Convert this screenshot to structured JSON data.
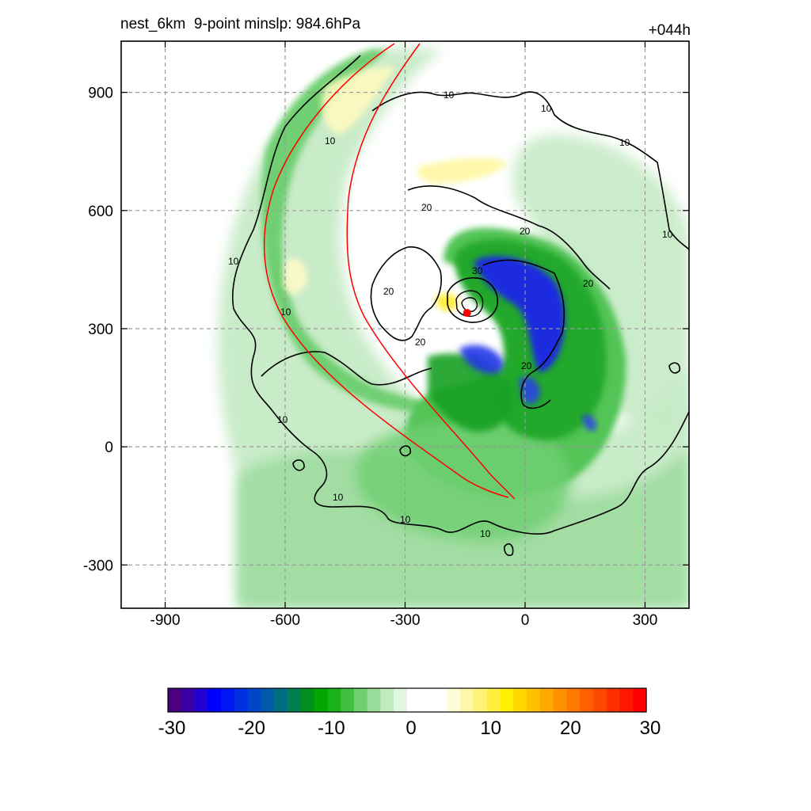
{
  "header": {
    "title": "nest_6km  9-point minslp: 984.6hPa",
    "forecast_hour": "+044h"
  },
  "axes": {
    "x_ticks": [
      "-900",
      "-600",
      "-300",
      "0",
      "300"
    ],
    "y_ticks": [
      "900",
      "600",
      "300",
      "0",
      "-300"
    ],
    "xlim": [
      -1010,
      410
    ],
    "ylim": [
      -410,
      1030
    ],
    "grid": "dashed"
  },
  "contours": {
    "levels": [
      "10",
      "20",
      "30"
    ],
    "line_color": "#000000"
  },
  "center": {
    "marker_color": "#ff0000",
    "x": -145,
    "y": 340
  },
  "track_color": "#ff0000",
  "colorbar": {
    "tick_labels": [
      "-30",
      "-20",
      "-10",
      "0",
      "10",
      "20",
      "30"
    ],
    "min": -30,
    "max": 30,
    "colors": [
      "#4b0082",
      "#3a00a6",
      "#2200d0",
      "#0000ff",
      "#0018f0",
      "#0030e0",
      "#0046c8",
      "#005aa8",
      "#006e80",
      "#008050",
      "#009020",
      "#00a800",
      "#1ab21a",
      "#40c040",
      "#70d070",
      "#9adc9a",
      "#c0ecc0",
      "#e2f6e2",
      "#ffffff",
      "#ffffff",
      "#ffffff",
      "#fffcd8",
      "#fff8a8",
      "#fff478",
      "#ffee40",
      "#fff000",
      "#ffd800",
      "#ffc000",
      "#ffa800",
      "#ff9000",
      "#ff7800",
      "#ff6000",
      "#ff4800",
      "#ff3000",
      "#ff1800",
      "#ff0000"
    ]
  }
}
